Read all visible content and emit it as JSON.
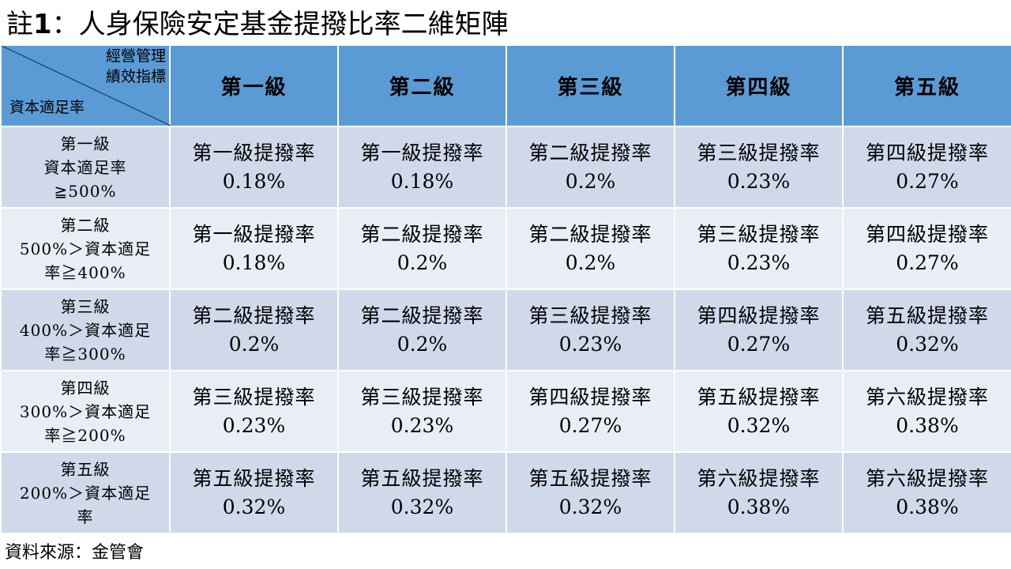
{
  "title": {
    "prefix": "註",
    "number": "1",
    "text": "：人身保險安定基金提撥比率二維矩陣"
  },
  "corner": {
    "column_axis": [
      "經營管理",
      "績效指標"
    ],
    "row_axis": "資本適足率"
  },
  "columns": [
    "第一級",
    "第二級",
    "第三級",
    "第四級",
    "第五級"
  ],
  "rows": [
    {
      "header": [
        "第一級",
        "資本適足率",
        "≧500%"
      ],
      "cells": [
        {
          "label": "第一級提撥率",
          "value": "0.18%"
        },
        {
          "label": "第一級提撥率",
          "value": "0.18%"
        },
        {
          "label": "第二級提撥率",
          "value": "0.2%"
        },
        {
          "label": "第三級提撥率",
          "value": "0.23%"
        },
        {
          "label": "第四級提撥率",
          "value": "0.27%"
        }
      ]
    },
    {
      "header": [
        "第二級",
        "500%＞資本適足",
        "率≧400%"
      ],
      "cells": [
        {
          "label": "第一級提撥率",
          "value": "0.18%"
        },
        {
          "label": "第二級提撥率",
          "value": "0.2%"
        },
        {
          "label": "第二級提撥率",
          "value": "0.2%"
        },
        {
          "label": "第三級提撥率",
          "value": "0.23%"
        },
        {
          "label": "第四級提撥率",
          "value": "0.27%"
        }
      ]
    },
    {
      "header": [
        "第三級",
        "400%＞資本適足",
        "率≧300%"
      ],
      "cells": [
        {
          "label": "第二級提撥率",
          "value": "0.2%"
        },
        {
          "label": "第二級提撥率",
          "value": "0.2%"
        },
        {
          "label": "第三級提撥率",
          "value": "0.23%"
        },
        {
          "label": "第四級提撥率",
          "value": "0.27%"
        },
        {
          "label": "第五級提撥率",
          "value": "0.32%"
        }
      ]
    },
    {
      "header": [
        "第四級",
        "300%＞資本適足",
        "率≧200%"
      ],
      "cells": [
        {
          "label": "第三級提撥率",
          "value": "0.23%"
        },
        {
          "label": "第三級提撥率",
          "value": "0.23%"
        },
        {
          "label": "第四級提撥率",
          "value": "0.27%"
        },
        {
          "label": "第五級提撥率",
          "value": "0.32%"
        },
        {
          "label": "第六級提撥率",
          "value": "0.38%"
        }
      ]
    },
    {
      "header": [
        "第五級",
        "200%＞資本適足",
        "率"
      ],
      "cells": [
        {
          "label": "第五級提撥率",
          "value": "0.32%"
        },
        {
          "label": "第五級提撥率",
          "value": "0.32%"
        },
        {
          "label": "第五級提撥率",
          "value": "0.32%"
        },
        {
          "label": "第六級提撥率",
          "value": "0.38%"
        },
        {
          "label": "第六級提撥率",
          "value": "0.38%"
        }
      ]
    }
  ],
  "source": "資料來源：金管會",
  "colors": {
    "header_bg": "#5b9bd5",
    "row_odd_bg": "#cfd9ea",
    "row_even_bg": "#e9edf5"
  }
}
